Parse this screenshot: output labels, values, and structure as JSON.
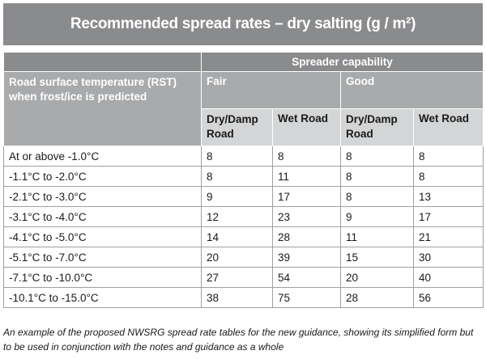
{
  "title": "Recommended spread rates – dry salting (g / m²)",
  "header": {
    "capability": "Spreader capability",
    "rst_label": "Road surface temperature (RST) when frost/ice is predicted",
    "fair": "Fair",
    "good": "Good",
    "dry_damp": "Dry/Damp Road",
    "wet": "Wet Road"
  },
  "rows": [
    {
      "temp": "At or above -1.0°C",
      "fair_dry": "8",
      "fair_wet": "8",
      "good_dry": "8",
      "good_wet": "8"
    },
    {
      "temp": "-1.1°C to -2.0°C",
      "fair_dry": "8",
      "fair_wet": "11",
      "good_dry": "8",
      "good_wet": "8"
    },
    {
      "temp": "-2.1°C to -3.0°C",
      "fair_dry": "9",
      "fair_wet": "17",
      "good_dry": "8",
      "good_wet": "13"
    },
    {
      "temp": "-3.1°C to -4.0°C",
      "fair_dry": "12",
      "fair_wet": "23",
      "good_dry": "9",
      "good_wet": "17"
    },
    {
      "temp": "-4.1°C to -5.0°C",
      "fair_dry": "14",
      "fair_wet": "28",
      "good_dry": "11",
      "good_wet": "21"
    },
    {
      "temp": "-5.1°C to -7.0°C",
      "fair_dry": "20",
      "fair_wet": "39",
      "good_dry": "15",
      "good_wet": "30"
    },
    {
      "temp": "-7.1°C to -10.0°C",
      "fair_dry": "27",
      "fair_wet": "54",
      "good_dry": "20",
      "good_wet": "40"
    },
    {
      "temp": "-10.1°C to -15.0°C",
      "fair_dry": "38",
      "fair_wet": "75",
      "good_dry": "28",
      "good_wet": "56"
    }
  ],
  "caption": "An example of the proposed NWSRG spread rate tables for the new guidance, showing its simplified form but to be used in conjunction with the notes and guidance as a whole"
}
